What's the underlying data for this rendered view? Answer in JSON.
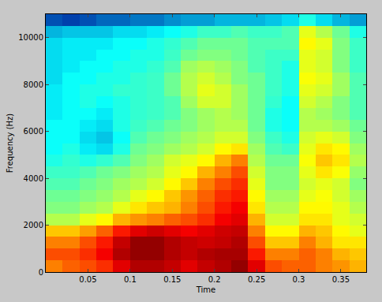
{
  "chart_data": {
    "type": "heatmap",
    "xlabel": "Time",
    "ylabel": "Frequency (Hz)",
    "x": [
      0.01,
      0.03,
      0.05,
      0.07,
      0.09,
      0.11,
      0.13,
      0.15,
      0.17,
      0.19,
      0.21,
      0.23,
      0.25,
      0.27,
      0.29,
      0.31,
      0.33,
      0.35,
      0.37
    ],
    "y": [
      250,
      750,
      1250,
      1750,
      2250,
      2750,
      3250,
      3750,
      4250,
      4750,
      5250,
      5750,
      6250,
      6750,
      7250,
      7750,
      8250,
      8750,
      9250,
      9750,
      10250,
      10750
    ],
    "z": [
      [
        7.5,
        7.8,
        8,
        8.3,
        9,
        9.5,
        9.5,
        9.3,
        9,
        9.3,
        9.5,
        9.8,
        9,
        8,
        7.8,
        7.8,
        7.5,
        7.3,
        7
      ],
      [
        8,
        8,
        8.3,
        8.8,
        9.5,
        9.8,
        9.8,
        9.5,
        9.3,
        9.5,
        9.6,
        9.6,
        8.5,
        7.5,
        7.5,
        7.8,
        7.5,
        7,
        6.8
      ],
      [
        7.5,
        7.5,
        8,
        8.5,
        9.3,
        9.8,
        9.8,
        9.5,
        9.3,
        9.2,
        9.3,
        9.5,
        8,
        6.8,
        6.8,
        7.5,
        7,
        6.5,
        6.5
      ],
      [
        6.8,
        6.8,
        7.2,
        7.8,
        8.5,
        9,
        9.2,
        9,
        8.8,
        9,
        9.2,
        9.3,
        7.5,
        6.3,
        6.3,
        7,
        6.8,
        6.3,
        6
      ],
      [
        5.5,
        5.5,
        6,
        6.3,
        7,
        7.3,
        7.5,
        7.8,
        8,
        8.3,
        8.8,
        9,
        7,
        5.8,
        5.8,
        6.5,
        6.5,
        6,
        5.8
      ],
      [
        5,
        5,
        5.3,
        5.5,
        6,
        6.5,
        6.8,
        7,
        7.5,
        8,
        8.5,
        8.8,
        6.5,
        5.5,
        5.5,
        6.3,
        6.3,
        6,
        5.5
      ],
      [
        4.8,
        4.8,
        5,
        5.2,
        5.5,
        6,
        6.3,
        6.8,
        7.3,
        7.8,
        8.3,
        8.5,
        6.3,
        5.3,
        5.3,
        6,
        6.2,
        5.8,
        5.3
      ],
      [
        4.5,
        4.5,
        4.8,
        5,
        5.3,
        5.5,
        5.8,
        6.3,
        6.8,
        7.5,
        8,
        8.3,
        6,
        5,
        5,
        5.8,
        6,
        5.8,
        5
      ],
      [
        4.3,
        4.3,
        4.5,
        4.8,
        5,
        5.3,
        5.5,
        6,
        6.3,
        7,
        7.5,
        8,
        5.8,
        5,
        5,
        6,
        6.5,
        6.2,
        5.2
      ],
      [
        4,
        4.2,
        4,
        4.2,
        4.5,
        5,
        5.3,
        5.8,
        6,
        6.3,
        7,
        7.5,
        5.5,
        4.8,
        4.8,
        6.2,
        6.8,
        6.5,
        5.5
      ],
      [
        3.8,
        4,
        3.5,
        3.3,
        4,
        4.8,
        5,
        5.3,
        5.5,
        5.8,
        6.3,
        6.5,
        5.3,
        4.5,
        4.3,
        6,
        6.5,
        6.3,
        5.3
      ],
      [
        3.8,
        3.8,
        3.3,
        3,
        3.8,
        4.5,
        4.8,
        5,
        5.3,
        5.5,
        5.8,
        5.8,
        5,
        4.3,
        4,
        5.8,
        6,
        5.8,
        5
      ],
      [
        3.8,
        3.8,
        3.5,
        3.3,
        4,
        4.3,
        4.5,
        4.8,
        5,
        5.3,
        5.5,
        5.5,
        4.8,
        4,
        3.8,
        5.5,
        5.5,
        5.3,
        4.8
      ],
      [
        3.5,
        3.8,
        3.8,
        3.5,
        4,
        4.2,
        4.3,
        4.5,
        5,
        5.3,
        5.5,
        5.3,
        4.8,
        4,
        3.8,
        5.5,
        5.3,
        5,
        4.5
      ],
      [
        3.5,
        3.8,
        4,
        3.8,
        4,
        4.2,
        4.3,
        4.5,
        5.3,
        5.8,
        5.8,
        5.3,
        4.8,
        4.2,
        3.8,
        5.8,
        5.5,
        5,
        4.5
      ],
      [
        3.5,
        3.8,
        4,
        4,
        4.2,
        4.2,
        4.3,
        4.8,
        5.5,
        6,
        5.8,
        5.3,
        4.8,
        4.3,
        4,
        6,
        5.8,
        5.3,
        4.5
      ],
      [
        3.3,
        3.8,
        3.8,
        4,
        4,
        4.2,
        4.3,
        4.8,
        5.5,
        5.8,
        5.5,
        5,
        4.8,
        4.3,
        4,
        6.2,
        6,
        5.3,
        4.5
      ],
      [
        3.3,
        3.5,
        3.8,
        3.8,
        4,
        4,
        4.2,
        4.5,
        5.3,
        5.5,
        5.3,
        5,
        4.5,
        4.3,
        4,
        6,
        5.8,
        5,
        4.3
      ],
      [
        3.3,
        3.5,
        3.5,
        3.8,
        3.8,
        4,
        4,
        4.3,
        4.8,
        5,
        5,
        4.8,
        4.5,
        4.3,
        4.3,
        6,
        5.8,
        5,
        4.3
      ],
      [
        3.3,
        3.5,
        3.5,
        3.5,
        3.8,
        3.8,
        4,
        4.2,
        4.5,
        4.8,
        4.8,
        4.8,
        4.5,
        4.5,
        4.5,
        6.3,
        6,
        5,
        4.3
      ],
      [
        2.8,
        3,
        3,
        3,
        3.3,
        3.3,
        3.5,
        3.8,
        4,
        4.3,
        4.3,
        4.5,
        4.3,
        4.3,
        4.5,
        6,
        5.5,
        4.8,
        4
      ],
      [
        1.5,
        1.3,
        1.5,
        1.8,
        1.8,
        2,
        2,
        2.3,
        2.5,
        2.5,
        2.8,
        2.8,
        2.8,
        3,
        3.3,
        4,
        3.3,
        2.8,
        2.5
      ]
    ],
    "zlim": [
      0,
      10
    ],
    "xlim": [
      0,
      0.38
    ],
    "ylim": [
      0,
      11000
    ],
    "xticks": [
      0.05,
      0.1,
      0.15,
      0.2,
      0.25,
      0.3,
      0.35
    ],
    "yticks": [
      0,
      2000,
      4000,
      6000,
      8000,
      10000
    ]
  }
}
